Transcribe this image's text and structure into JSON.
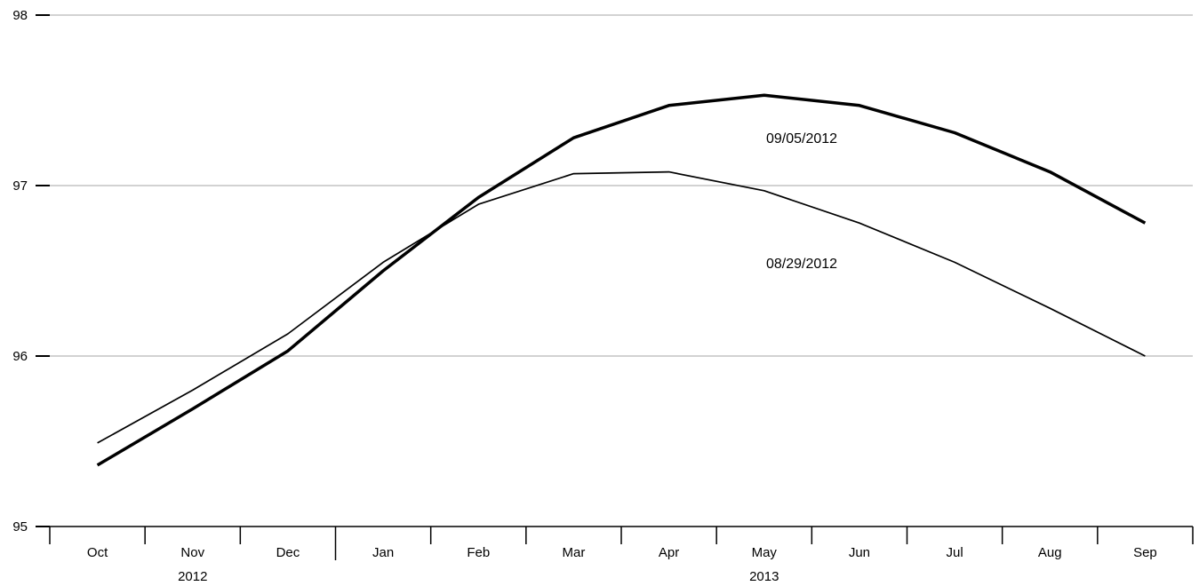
{
  "chart_data": {
    "type": "line",
    "title": "",
    "xlabel": "",
    "ylabel": "",
    "ylim": [
      95,
      98
    ],
    "y_ticks": [
      "95",
      "96",
      "97",
      "98"
    ],
    "grid": "horizontal",
    "categories": [
      "Oct",
      "Nov",
      "Dec",
      "Jan",
      "Feb",
      "Mar",
      "Apr",
      "May",
      "Jun",
      "Jul",
      "Aug",
      "Sep"
    ],
    "year_labels": [
      {
        "label": "2012",
        "under": "Nov"
      },
      {
        "label": "2013",
        "under": "May"
      }
    ],
    "series": [
      {
        "name": "09/05/2012",
        "values": [
          95.36,
          95.69,
          96.03,
          96.5,
          96.93,
          97.28,
          97.47,
          97.53,
          97.47,
          97.31,
          97.08,
          96.78
        ],
        "color": "#000000",
        "style": "thick"
      },
      {
        "name": "08/29/2012",
        "values": [
          95.49,
          95.8,
          96.13,
          96.55,
          96.89,
          97.07,
          97.08,
          96.97,
          96.78,
          96.55,
          96.28,
          96.0
        ],
        "color": "#000000",
        "style": "thin"
      }
    ]
  }
}
